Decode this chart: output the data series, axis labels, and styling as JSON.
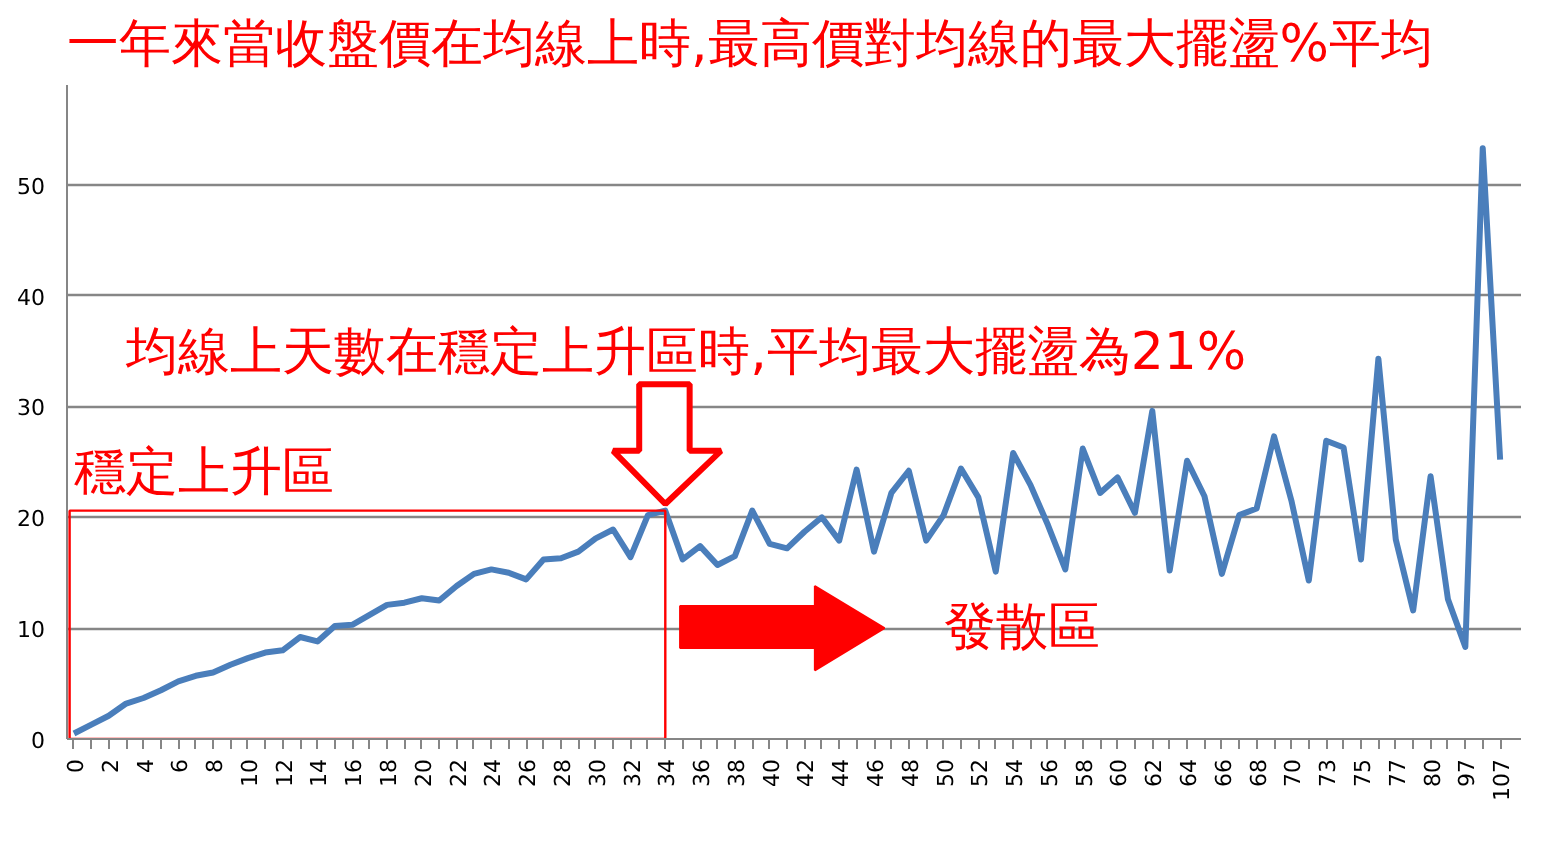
{
  "chart_data": {
    "type": "line",
    "title": "一年來當收盤價在均線上時,最高價對均線的最大擺盪%平均",
    "categories": [
      "0",
      null,
      "2",
      null,
      "4",
      null,
      "6",
      null,
      "8",
      null,
      "10",
      null,
      "12",
      null,
      "14",
      null,
      "16",
      null,
      "18",
      null,
      "20",
      null,
      "22",
      null,
      "24",
      null,
      "26",
      null,
      "28",
      null,
      "30",
      null,
      "32",
      null,
      "34",
      null,
      "36",
      null,
      "38",
      null,
      "40",
      null,
      "42",
      null,
      "44",
      null,
      "46",
      null,
      "48",
      null,
      "50",
      null,
      "52",
      null,
      "54",
      null,
      "56",
      null,
      "58",
      null,
      "60",
      null,
      "62",
      null,
      "64",
      null,
      "66",
      null,
      "68",
      null,
      "70",
      null,
      "73",
      null,
      "75",
      null,
      "77",
      null,
      "80",
      null,
      "97",
      null,
      "107"
    ],
    "series": [
      {
        "color": "#4a7ebb",
        "values": [
          0.5,
          1.3,
          2.1,
          3.2,
          3.7,
          4.4,
          5.2,
          5.7,
          6.0,
          6.7,
          7.3,
          7.8,
          8.0,
          9.2,
          8.8,
          10.2,
          10.3,
          11.2,
          12.1,
          12.3,
          12.7,
          12.5,
          13.8,
          14.9,
          15.3,
          15.0,
          14.4,
          16.2,
          16.3,
          16.9,
          18.1,
          18.9,
          16.4,
          20.2,
          20.6,
          16.2,
          17.4,
          15.7,
          16.5,
          20.6,
          17.6,
          17.2,
          18.7,
          20.0,
          17.9,
          24.3,
          16.9,
          22.2,
          24.2,
          17.9,
          20.2,
          24.4,
          21.8,
          15.1,
          25.8,
          22.9,
          19.3,
          15.3,
          26.2,
          22.2,
          23.6,
          20.4,
          29.6,
          15.2,
          25.1,
          21.9,
          14.9,
          20.2,
          20.8,
          27.3,
          21.5,
          14.3,
          26.9,
          26.3,
          16.2,
          34.3,
          18.0,
          11.6,
          23.7,
          12.6,
          8.3,
          53.3,
          25.2
        ]
      }
    ],
    "ylim": [
      0,
      59
    ],
    "yticks": [
      0,
      10,
      20,
      30,
      40,
      50
    ],
    "grid": "y",
    "marker": "none",
    "line_style": "solid",
    "annotations": [
      {
        "text": "均線上天數在穩定上升區時,平均最大擺盪為21%",
        "x": "34",
        "y": 20.6
      },
      "穩定上升區",
      "發散區"
    ]
  }
}
